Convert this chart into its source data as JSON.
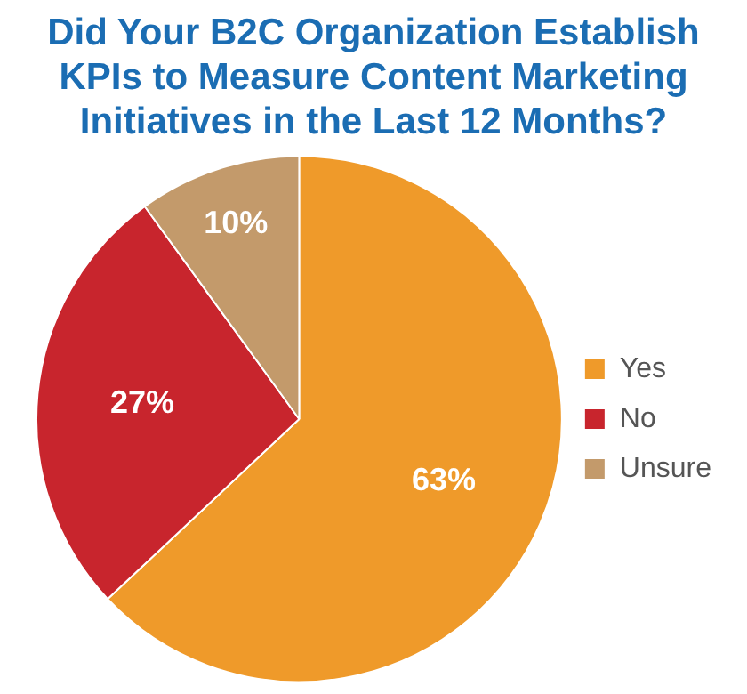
{
  "chart_data": {
    "type": "pie",
    "title": "Did Your B2C Organization Establish KPIs to Measure Content Marketing Initiatives in the Last 12 Months?",
    "categories": [
      "Yes",
      "No",
      "Unsure"
    ],
    "values": [
      63,
      27,
      10
    ],
    "colors": [
      "#ef9a2a",
      "#c8252d",
      "#c39a6b"
    ],
    "value_labels": [
      "63%",
      "27%",
      "10%"
    ],
    "legend": "right"
  }
}
